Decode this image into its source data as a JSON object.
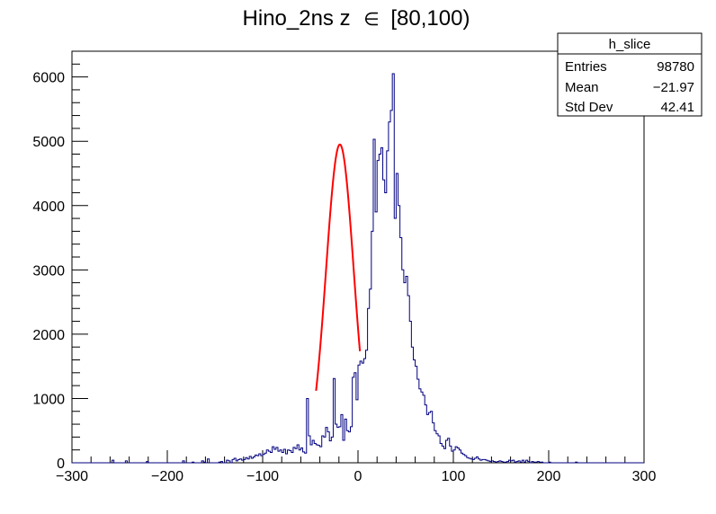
{
  "chart_data": {
    "type": "histogram",
    "title_main": "Hino_2ns z",
    "title_symbol": "∈",
    "title_range": "[80,100)",
    "xlabel": "",
    "ylabel": "",
    "xlim": [
      -300,
      300
    ],
    "ylim": [
      0,
      6400
    ],
    "x_ticks": [
      -300,
      -200,
      -100,
      0,
      100,
      200,
      300
    ],
    "x_tick_labels": [
      "−300",
      "−200",
      "−100",
      "0",
      "100",
      "200",
      "300"
    ],
    "y_ticks": [
      0,
      1000,
      2000,
      3000,
      4000,
      5000,
      6000
    ],
    "y_tick_labels": [
      "0",
      "1000",
      "2000",
      "3000",
      "4000",
      "5000",
      "6000"
    ],
    "grid": false,
    "legend": "none",
    "histogram": {
      "name": "h_slice",
      "color": "#000080",
      "bin_width": 2,
      "x_start": -300,
      "counts": [
        0,
        0,
        0,
        0,
        0,
        0,
        0,
        0,
        0,
        0,
        0,
        0,
        0,
        0,
        0,
        0,
        0,
        0,
        0,
        0,
        0,
        40,
        0,
        0,
        0,
        0,
        0,
        0,
        30,
        0,
        0,
        0,
        0,
        0,
        0,
        0,
        0,
        0,
        0,
        20,
        0,
        0,
        0,
        0,
        0,
        0,
        0,
        0,
        0,
        0,
        0,
        0,
        0,
        0,
        0,
        0,
        0,
        0,
        30,
        0,
        0,
        0,
        0,
        10,
        0,
        0,
        0,
        0,
        30,
        10,
        0,
        60,
        0,
        0,
        0,
        0,
        0,
        10,
        20,
        0,
        0,
        40,
        30,
        0,
        50,
        70,
        30,
        50,
        60,
        40,
        50,
        80,
        60,
        100,
        70,
        90,
        120,
        110,
        140,
        110,
        130,
        150,
        200,
        180,
        160,
        250,
        210,
        240,
        180,
        200,
        160,
        210,
        140,
        200,
        190,
        160,
        240,
        220,
        280,
        200,
        230,
        170,
        150,
        1000,
        420,
        280,
        350,
        300,
        280,
        270,
        250,
        420,
        400,
        550,
        480,
        340,
        400,
        1310,
        600,
        550,
        560,
        750,
        350,
        680,
        500,
        480,
        560,
        1330,
        1400,
        980,
        1520,
        1580,
        1550,
        1620,
        1750,
        2400,
        2700,
        3600,
        5030,
        3900,
        4700,
        4800,
        4900,
        4400,
        4200,
        4850,
        5300,
        5480,
        6050,
        3800,
        4500,
        4000,
        3500,
        3000,
        2800,
        2900,
        2600,
        2200,
        1800,
        1600,
        1500,
        1300,
        1150,
        1100,
        1050,
        900,
        750,
        780,
        800,
        620,
        500,
        450,
        420,
        300,
        260,
        220,
        350,
        380,
        260,
        180,
        200,
        250,
        230,
        200,
        150,
        130,
        110,
        80,
        70,
        60,
        50,
        70,
        90,
        60,
        40,
        50,
        50,
        40,
        30,
        20,
        30,
        20,
        10,
        20,
        30,
        20,
        10,
        10,
        20,
        40,
        30,
        40,
        10,
        20,
        30,
        10,
        40,
        10,
        40,
        20,
        0,
        20,
        10,
        10,
        20,
        10,
        10,
        0,
        0,
        0,
        10,
        0,
        0,
        0,
        0,
        0,
        0,
        0,
        0,
        0,
        0,
        0,
        0,
        0,
        10,
        0,
        0,
        0,
        0,
        0,
        0,
        0,
        0,
        0,
        0,
        0,
        0,
        0,
        0,
        0,
        0,
        0,
        0,
        0,
        0,
        0,
        0,
        0,
        0,
        0,
        0,
        0,
        0,
        0,
        0,
        0,
        0,
        0,
        0,
        0
      ]
    },
    "fit": {
      "type": "gaussian",
      "color": "#ff0000",
      "amplitude": 4950,
      "mean": -19,
      "sigma": 14.5,
      "range": [
        -44,
        2
      ]
    }
  },
  "stats_box": {
    "title": "h_slice",
    "rows": [
      {
        "label": "Entries",
        "value": "98780"
      },
      {
        "label": "Mean",
        "value": "−21.97"
      },
      {
        "label": "Std Dev",
        "value": "42.41"
      }
    ]
  }
}
